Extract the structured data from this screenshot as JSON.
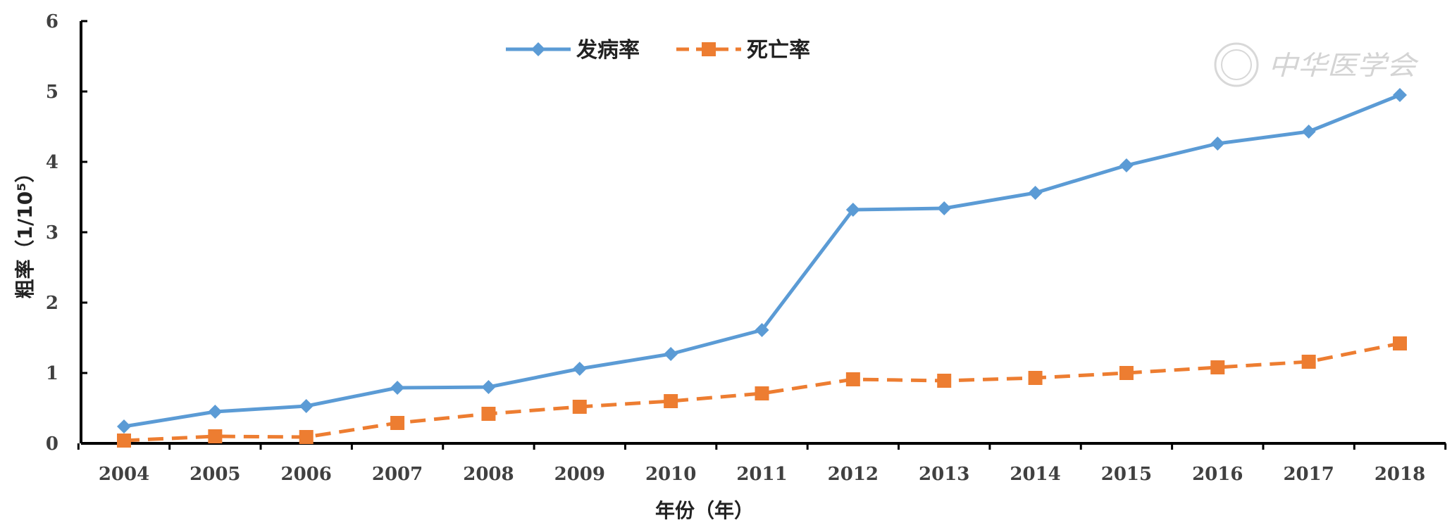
{
  "watermark": "中华医学会",
  "chart_data": {
    "type": "line",
    "xlabel": "年份（年）",
    "ylabel": "粗率（1/10⁵）",
    "ylim": [
      0,
      6
    ],
    "yticks": [
      0,
      1,
      2,
      3,
      4,
      5,
      6
    ],
    "grid": false,
    "legend_position": "top-center",
    "categories": [
      "2004",
      "2005",
      "2006",
      "2007",
      "2008",
      "2009",
      "2010",
      "2011",
      "2012",
      "2013",
      "2014",
      "2015",
      "2016",
      "2017",
      "2018"
    ],
    "series": [
      {
        "name": "发病率",
        "color": "#5b9bd5",
        "marker": "diamond",
        "line_style": "solid",
        "values": [
          0.24,
          0.45,
          0.53,
          0.79,
          0.8,
          1.06,
          1.27,
          1.61,
          3.32,
          3.34,
          3.56,
          3.95,
          4.26,
          4.43,
          4.95
        ]
      },
      {
        "name": "死亡率",
        "color": "#ed7d31",
        "marker": "square",
        "line_style": "dashed",
        "values": [
          0.04,
          0.1,
          0.09,
          0.29,
          0.42,
          0.52,
          0.6,
          0.71,
          0.91,
          0.89,
          0.93,
          1.0,
          1.08,
          1.16,
          1.42
        ]
      }
    ]
  }
}
